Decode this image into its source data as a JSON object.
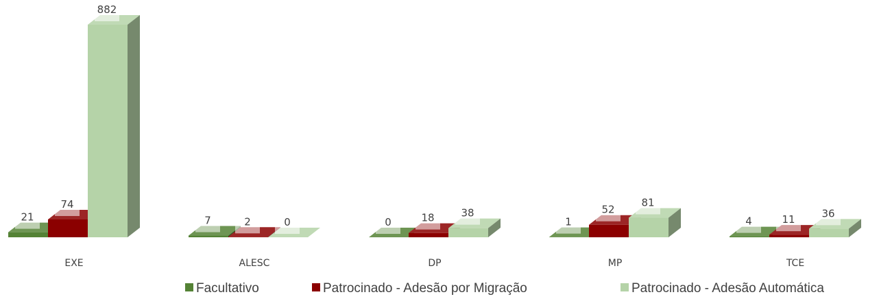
{
  "chart_data": {
    "type": "bar3d",
    "categories": [
      "EXE",
      "ALESC",
      "DP",
      "MP",
      "TCE"
    ],
    "series": [
      {
        "name": "Facultativo",
        "color": "#548235",
        "values": [
          21,
          7,
          0,
          1,
          4
        ]
      },
      {
        "name": "Patrocinado - Adesão por Migração",
        "color": "#8b0000",
        "values": [
          74,
          2,
          18,
          52,
          11
        ]
      },
      {
        "name": "Patrocinado - Adesão Automática",
        "color": "#b5d3a8",
        "values": [
          882,
          0,
          38,
          81,
          36
        ]
      }
    ],
    "legend": "bottom"
  }
}
